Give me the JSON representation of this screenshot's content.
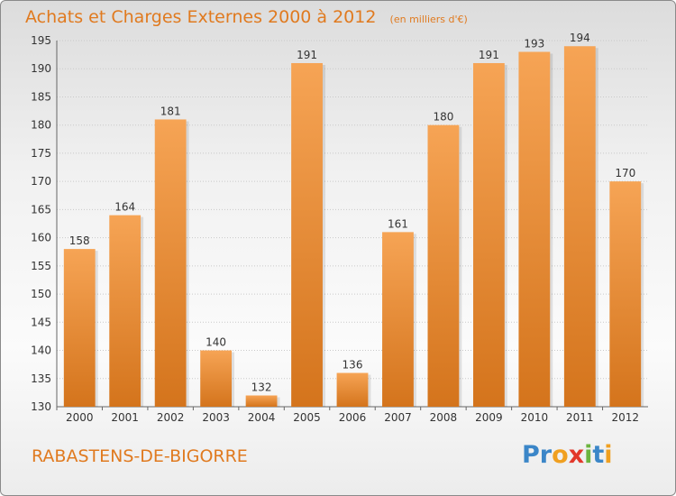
{
  "chart_data": {
    "type": "bar",
    "title": "Achats et Charges Externes 2000 à 2012",
    "subtitle": "(en milliers d'€)",
    "categories": [
      "2000",
      "2001",
      "2002",
      "2003",
      "2004",
      "2005",
      "2006",
      "2007",
      "2008",
      "2009",
      "2010",
      "2011",
      "2012"
    ],
    "values": [
      158,
      164,
      181,
      140,
      132,
      191,
      136,
      161,
      180,
      191,
      193,
      194,
      170
    ],
    "ylim": [
      130,
      195
    ],
    "yticks": [
      130,
      135,
      140,
      145,
      150,
      155,
      160,
      165,
      170,
      175,
      180,
      185,
      190,
      195
    ],
    "grid": true,
    "bar_color": "#f0913a",
    "xlabel": "",
    "ylabel": ""
  },
  "footer": {
    "place": "RABASTENS-DE-BIGORRE",
    "logo_letters": [
      {
        "ch": "P",
        "color": "#3b86c8"
      },
      {
        "ch": "r",
        "color": "#3b86c8"
      },
      {
        "ch": "o",
        "color": "#f0a020"
      },
      {
        "ch": "x",
        "color": "#e2382b"
      },
      {
        "ch": "i",
        "color": "#6cb43f"
      },
      {
        "ch": "t",
        "color": "#3b86c8"
      },
      {
        "ch": "i",
        "color": "#f0a020"
      }
    ]
  }
}
